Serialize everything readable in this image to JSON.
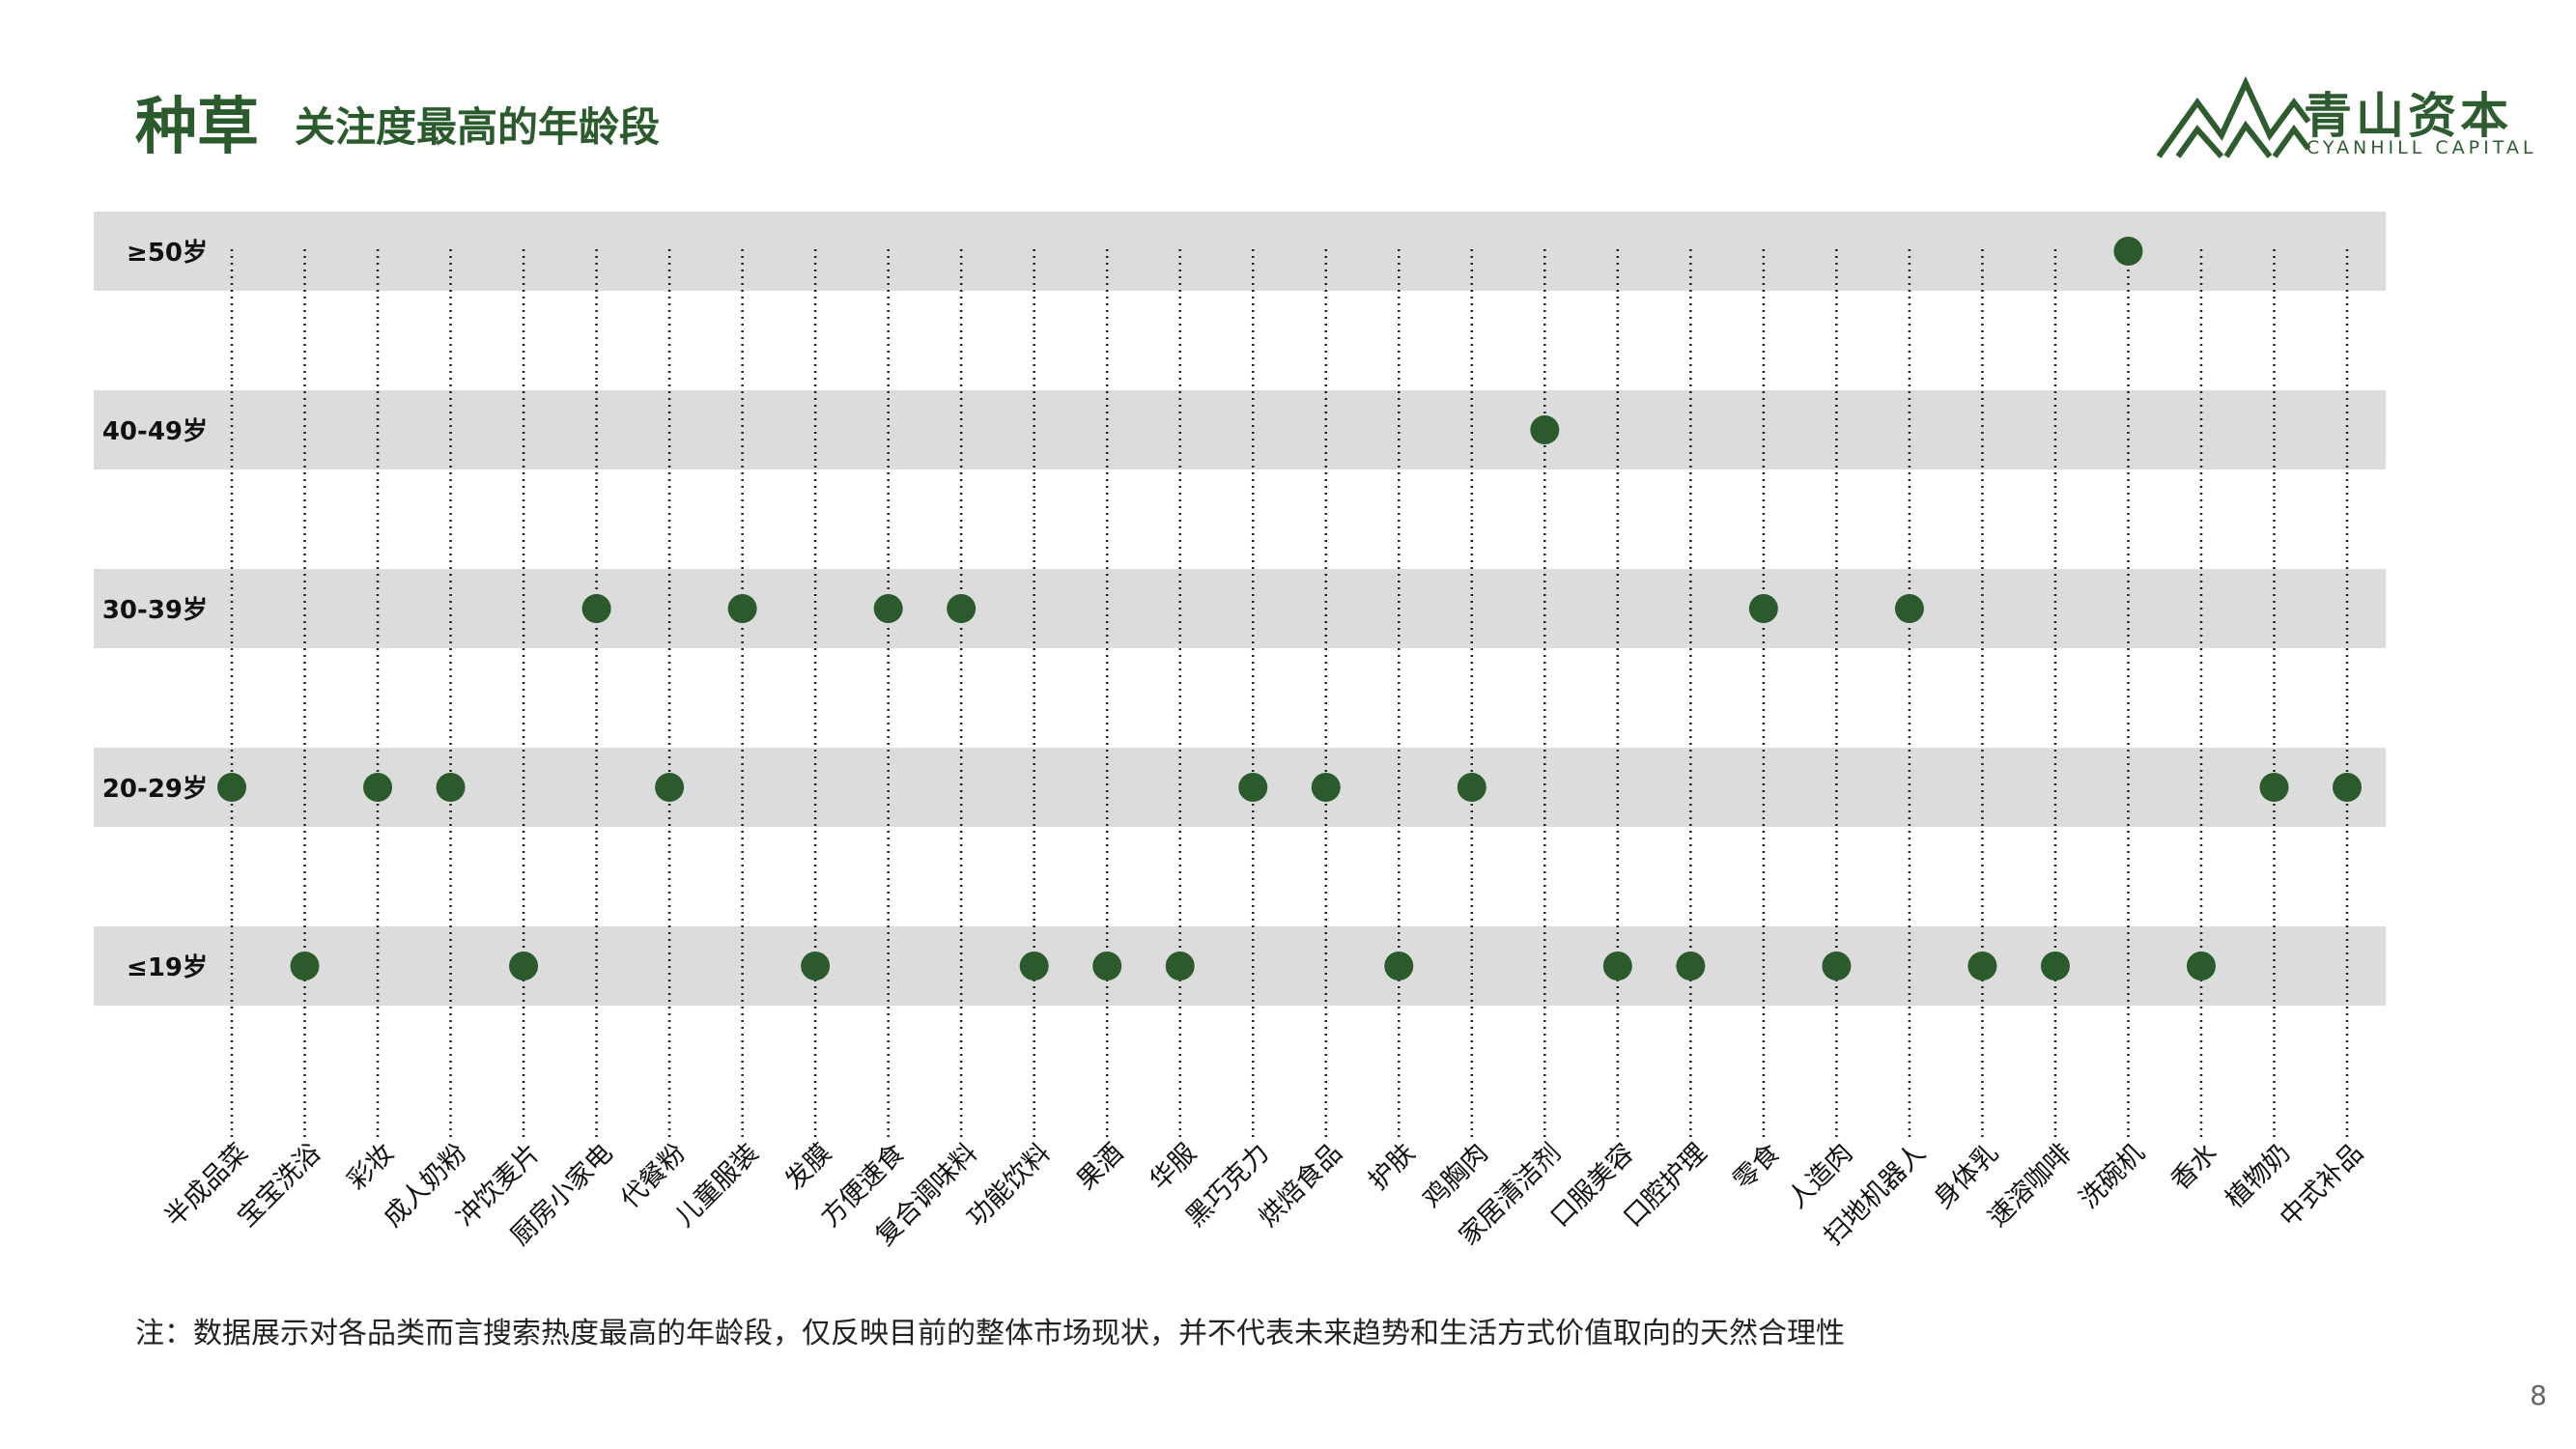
{
  "header": {
    "title": "种草",
    "subtitle": "关注度最高的年龄段"
  },
  "logo": {
    "name_cn": "青山资本",
    "name_en": "CYANHILL CAPITAL",
    "color": "#2e5b30"
  },
  "colors": {
    "dot": "#2b5a2d",
    "band": "#dcdcdc",
    "title": "#2b5a2d"
  },
  "chart_data": {
    "type": "scatter",
    "title": "",
    "xlabel": "",
    "ylabel": "",
    "grid": "vertical dotted lines per category",
    "y_categories": [
      "≤19岁",
      "20-29岁",
      "30-39岁",
      "40-49岁",
      "≥50岁"
    ],
    "categories": [
      "半成品菜",
      "宝宝洗浴",
      "彩妆",
      "成人奶粉",
      "冲饮麦片",
      "厨房小家电",
      "代餐粉",
      "儿童服装",
      "发膜",
      "方便速食",
      "复合调味料",
      "功能饮料",
      "果酒",
      "华服",
      "黑巧克力",
      "烘焙食品",
      "护肤",
      "鸡胸肉",
      "家居清洁剂",
      "口服美容",
      "口腔护理",
      "零食",
      "人造肉",
      "扫地机器人",
      "身体乳",
      "速溶咖啡",
      "洗碗机",
      "香水",
      "植物奶",
      "中式补品"
    ],
    "values": [
      "20-29岁",
      "≤19岁",
      "20-29岁",
      "20-29岁",
      "≤19岁",
      "30-39岁",
      "20-29岁",
      "30-39岁",
      "≤19岁",
      "30-39岁",
      "30-39岁",
      "≤19岁",
      "≤19岁",
      "≤19岁",
      "20-29岁",
      "20-29岁",
      "≤19岁",
      "20-29岁",
      "40-49岁",
      "≤19岁",
      "≤19岁",
      "30-39岁",
      "≤19岁",
      "30-39岁",
      "≤19岁",
      "≤19岁",
      "≥50岁",
      "≤19岁",
      "20-29岁",
      "20-29岁"
    ]
  },
  "note": "注：数据展示对各品类而言搜索热度最高的年龄段，仅反映目前的整体市场现状，并不代表未来趋势和生活方式价值取向的天然合理性",
  "page_number": "8"
}
